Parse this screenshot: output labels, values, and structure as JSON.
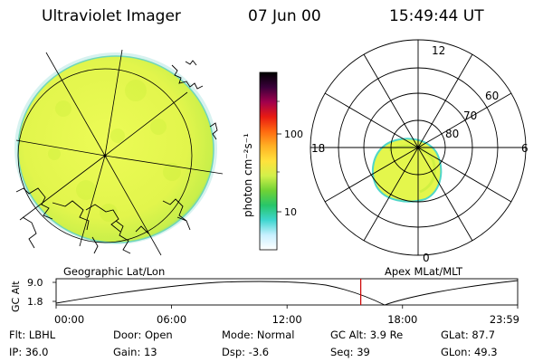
{
  "header": {
    "instrument": "Ultraviolet Imager",
    "date": "07 Jun 00",
    "time": "15:49:44 UT"
  },
  "colorbar": {
    "unit_label": "photon cm⁻²s⁻¹",
    "tick_100": "100",
    "tick_10": "10",
    "stops": [
      "#ffffff",
      "#c8f0ff",
      "#3fd6d0",
      "#27c66a",
      "#6fd235",
      "#d2f04a",
      "#ffe23c",
      "#ffb224",
      "#ff6a10",
      "#e81b12",
      "#a0004d",
      "#3a003a",
      "#000000"
    ]
  },
  "geo_panel": {
    "label": "Geographic Lat/Lon"
  },
  "polar_panel": {
    "label": "Apex  MLat/MLT",
    "mlt_top": "12",
    "mlt_left": "18",
    "mlt_right": "6",
    "mlt_bottom": "0",
    "lat_60": "60",
    "lat_70": "70",
    "lat_80": "80"
  },
  "altitude_plot": {
    "axis_label": "GC Alt",
    "y_max": "9.0",
    "y_min": "1.8",
    "x_ticks": [
      "00:00",
      "06:00",
      "12:00",
      "18:00",
      "23:59"
    ],
    "current_time_marker_hours": 15.83,
    "marker_color": "#cc0000"
  },
  "status": {
    "flt": "Flt: LBHL",
    "ip": "IP: 36.0",
    "door": "Door: Open",
    "gain": "Gain: 13",
    "mode": "Mode: Normal",
    "dsp": "Dsp:    -3.6",
    "gcalt": "GC Alt: 3.9 Re",
    "seq": "Seq: 39",
    "glat": "GLat:  87.7",
    "glon": "GLon:  49.3"
  }
}
